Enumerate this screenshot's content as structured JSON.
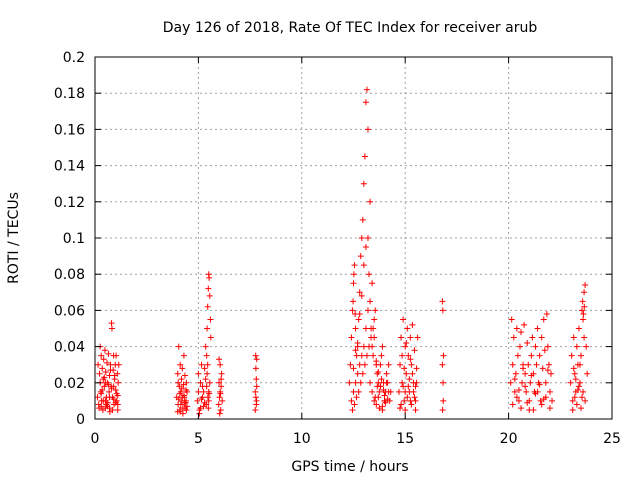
{
  "chart_data": {
    "type": "scatter",
    "title": "Day 126 of 2018, Rate Of TEC Index for receiver arub",
    "xlabel": "GPS time / hours",
    "ylabel": "ROTI / TECUs",
    "xlim": [
      0,
      25
    ],
    "ylim": [
      0,
      0.2
    ],
    "x_ticks": [
      0,
      5,
      10,
      15,
      20,
      25
    ],
    "x_tick_labels": [
      "0",
      "5",
      "10",
      "15",
      "20",
      "25"
    ],
    "y_ticks": [
      0,
      0.02,
      0.04,
      0.06,
      0.08,
      0.1,
      0.12,
      0.14,
      0.16,
      0.18,
      0.2
    ],
    "y_tick_labels": [
      "0",
      "0.02",
      "0.04",
      "0.06",
      "0.08",
      "0.1",
      "0.12",
      "0.14",
      "0.16",
      "0.18",
      "0.2"
    ],
    "grid": true,
    "marker": "+",
    "color": "#ff0000",
    "series": [
      {
        "x": [
          0.12,
          0.15,
          0.18,
          0.22,
          0.25,
          0.28,
          0.3,
          0.32,
          0.35,
          0.38,
          0.4,
          0.42,
          0.45,
          0.48,
          0.5,
          0.52,
          0.55,
          0.58,
          0.6,
          0.62,
          0.65,
          0.68,
          0.7,
          0.72,
          0.75,
          0.78,
          0.8,
          0.82,
          0.85,
          0.88,
          0.9,
          0.92,
          0.95,
          0.98,
          1.0,
          1.02,
          1.05,
          1.08,
          1.1,
          1.12,
          1.15,
          0.2,
          0.3,
          0.4,
          0.5,
          0.6,
          0.7,
          0.8,
          0.9,
          1.0,
          1.1,
          0.25,
          0.35,
          0.45,
          0.55,
          0.65,
          0.75,
          0.85,
          0.95,
          1.05,
          0.3,
          0.5,
          0.7,
          0.9,
          1.1
        ],
        "y": [
          0.012,
          0.03,
          0.008,
          0.025,
          0.04,
          0.015,
          0.035,
          0.01,
          0.028,
          0.005,
          0.022,
          0.033,
          0.018,
          0.038,
          0.006,
          0.026,
          0.012,
          0.031,
          0.02,
          0.009,
          0.036,
          0.015,
          0.024,
          0.004,
          0.03,
          0.018,
          0.053,
          0.05,
          0.012,
          0.027,
          0.035,
          0.008,
          0.022,
          0.03,
          0.016,
          0.035,
          0.01,
          0.025,
          0.005,
          0.02,
          0.03,
          0.006,
          0.014,
          0.01,
          0.02,
          0.007,
          0.012,
          0.017,
          0.011,
          0.009,
          0.013,
          0.02,
          0.016,
          0.023,
          0.008,
          0.019,
          0.027,
          0.005,
          0.024,
          0.014,
          0.007,
          0.01,
          0.006,
          0.018,
          0.008
        ]
      },
      {
        "x": [
          3.95,
          4.0,
          4.02,
          4.05,
          4.08,
          4.1,
          4.12,
          4.15,
          4.18,
          4.2,
          4.22,
          4.25,
          4.28,
          4.3,
          4.32,
          4.35,
          4.38,
          4.4,
          4.42,
          4.45,
          4.0,
          4.05,
          4.1,
          4.15,
          4.2,
          4.25,
          4.3,
          4.35,
          4.4,
          4.45,
          4.02,
          4.12,
          4.22,
          4.32,
          4.42
        ],
        "y": [
          0.012,
          0.025,
          0.008,
          0.04,
          0.018,
          0.005,
          0.03,
          0.015,
          0.022,
          0.01,
          0.028,
          0.006,
          0.019,
          0.035,
          0.012,
          0.024,
          0.009,
          0.016,
          0.02,
          0.007,
          0.004,
          0.011,
          0.014,
          0.008,
          0.017,
          0.003,
          0.013,
          0.006,
          0.01,
          0.015,
          0.02,
          0.004,
          0.012,
          0.009,
          0.005
        ]
      },
      {
        "x": [
          4.95,
          5.0,
          5.05,
          5.1,
          5.15,
          5.2,
          5.25,
          5.3,
          5.35,
          5.4,
          5.42,
          5.45,
          5.48,
          5.5,
          5.52,
          5.55,
          5.58,
          5.6,
          5.35,
          5.4,
          5.45,
          5.5,
          5.38,
          5.42,
          5.46,
          5.1,
          5.2,
          5.3,
          5.0,
          5.05,
          5.15,
          5.25,
          5.5,
          5.55,
          5.48,
          5.52
        ],
        "y": [
          0.01,
          0.025,
          0.005,
          0.02,
          0.03,
          0.012,
          0.015,
          0.028,
          0.04,
          0.035,
          0.05,
          0.062,
          0.072,
          0.08,
          0.078,
          0.068,
          0.055,
          0.045,
          0.022,
          0.018,
          0.03,
          0.015,
          0.008,
          0.025,
          0.012,
          0.006,
          0.018,
          0.009,
          0.015,
          0.003,
          0.011,
          0.007,
          0.01,
          0.02,
          0.006,
          0.014
        ]
      },
      {
        "x": [
          5.98,
          6.0,
          6.02,
          6.05,
          6.08,
          6.1,
          6.12,
          6.15,
          6.0,
          6.05,
          6.1,
          6.03,
          6.07
        ],
        "y": [
          0.008,
          0.02,
          0.012,
          0.03,
          0.005,
          0.018,
          0.025,
          0.01,
          0.033,
          0.015,
          0.022,
          0.003,
          0.014
        ]
      },
      {
        "x": [
          7.75,
          7.78,
          7.8,
          7.82,
          7.75,
          7.78,
          7.8,
          7.82,
          7.77,
          7.81
        ],
        "y": [
          0.005,
          0.012,
          0.022,
          0.033,
          0.015,
          0.028,
          0.008,
          0.018,
          0.035,
          0.01
        ]
      },
      {
        "x": [
          12.3,
          12.35,
          12.4,
          12.45,
          12.5,
          12.55,
          12.6,
          12.65,
          12.7,
          12.75,
          12.8,
          12.85,
          12.9,
          12.95,
          13.0,
          13.05,
          13.1,
          13.15,
          13.2,
          13.25,
          13.3,
          13.35,
          13.4,
          13.45,
          13.5,
          13.55,
          13.6,
          13.65,
          13.7,
          13.75,
          13.8,
          13.85,
          13.9,
          13.95,
          14.0,
          14.05,
          14.1,
          14.15,
          14.2,
          14.25,
          14.3,
          12.4,
          12.5,
          12.6,
          12.7,
          12.8,
          12.9,
          13.0,
          13.1,
          13.2,
          13.3,
          13.4,
          13.5,
          13.6,
          13.7,
          13.8,
          13.9,
          14.0,
          14.1,
          14.2,
          12.45,
          12.55,
          12.65,
          12.75,
          12.85,
          12.95,
          13.05,
          13.15,
          13.25,
          13.35,
          13.45,
          13.55,
          13.65,
          13.75,
          13.85,
          13.95,
          14.05,
          14.15,
          12.5,
          12.6,
          12.7,
          12.8,
          12.9,
          13.0,
          13.1,
          13.2,
          13.3,
          13.4,
          13.5,
          13.6,
          13.7,
          13.8,
          13.9,
          14.0,
          12.48,
          12.52,
          12.58
        ],
        "y": [
          0.02,
          0.03,
          0.045,
          0.06,
          0.075,
          0.085,
          0.05,
          0.035,
          0.04,
          0.055,
          0.07,
          0.09,
          0.1,
          0.11,
          0.13,
          0.145,
          0.175,
          0.182,
          0.1,
          0.08,
          0.065,
          0.05,
          0.04,
          0.035,
          0.045,
          0.06,
          0.03,
          0.025,
          0.02,
          0.015,
          0.03,
          0.035,
          0.04,
          0.02,
          0.01,
          0.015,
          0.025,
          0.02,
          0.03,
          0.01,
          0.015,
          0.01,
          0.015,
          0.02,
          0.025,
          0.03,
          0.035,
          0.04,
          0.05,
          0.06,
          0.02,
          0.015,
          0.01,
          0.008,
          0.012,
          0.018,
          0.005,
          0.01,
          0.02,
          0.015,
          0.005,
          0.008,
          0.012,
          0.015,
          0.02,
          0.025,
          0.03,
          0.035,
          0.04,
          0.045,
          0.05,
          0.012,
          0.018,
          0.006,
          0.022,
          0.016,
          0.009,
          0.011,
          0.028,
          0.038,
          0.042,
          0.058,
          0.068,
          0.085,
          0.095,
          0.16,
          0.12,
          0.075,
          0.055,
          0.032,
          0.026,
          0.018,
          0.007,
          0.013,
          0.065,
          0.08,
          0.058
        ]
      },
      {
        "x": [
          14.7,
          14.75,
          14.8,
          14.85,
          14.9,
          14.95,
          15.0,
          15.05,
          15.1,
          15.15,
          15.2,
          15.25,
          15.3,
          15.35,
          15.4,
          15.45,
          15.5,
          15.55,
          15.6,
          14.8,
          14.9,
          15.0,
          15.1,
          15.2,
          15.3,
          15.4,
          15.5,
          14.85,
          14.95,
          15.05,
          15.15,
          15.25,
          15.35,
          15.45,
          15.55,
          14.75,
          15.0,
          15.25,
          15.5
        ],
        "y": [
          0.015,
          0.03,
          0.045,
          0.02,
          0.055,
          0.01,
          0.04,
          0.025,
          0.05,
          0.035,
          0.015,
          0.045,
          0.03,
          0.052,
          0.02,
          0.038,
          0.01,
          0.028,
          0.045,
          0.008,
          0.018,
          0.005,
          0.012,
          0.022,
          0.008,
          0.015,
          0.005,
          0.035,
          0.028,
          0.042,
          0.018,
          0.033,
          0.025,
          0.012,
          0.02,
          0.006,
          0.015,
          0.01,
          0.018
        ]
      },
      {
        "x": [
          16.8,
          16.82,
          16.85,
          16.8,
          16.83,
          16.84,
          16.81
        ],
        "y": [
          0.065,
          0.06,
          0.035,
          0.03,
          0.02,
          0.01,
          0.005
        ]
      },
      {
        "x": [
          20.1,
          20.15,
          20.2,
          20.25,
          20.3,
          20.35,
          20.4,
          20.45,
          20.5,
          20.55,
          20.6,
          20.65,
          20.7,
          20.75,
          20.8,
          20.85,
          20.9,
          20.95,
          21.0,
          21.05,
          21.1,
          21.15,
          21.2,
          21.25,
          21.3,
          21.35,
          21.4,
          21.45,
          21.5,
          21.55,
          21.6,
          21.65,
          21.7,
          21.75,
          21.8,
          21.85,
          21.9,
          21.95,
          22.0,
          22.05,
          22.1,
          20.2,
          20.4,
          20.6,
          20.8,
          21.0,
          21.2,
          21.4,
          21.6,
          21.8,
          22.0,
          20.3,
          20.5,
          20.7,
          20.9,
          21.1,
          21.3,
          21.5,
          21.7,
          21.9
        ],
        "y": [
          0.02,
          0.055,
          0.03,
          0.045,
          0.015,
          0.025,
          0.05,
          0.035,
          0.01,
          0.04,
          0.048,
          0.02,
          0.03,
          0.052,
          0.025,
          0.015,
          0.042,
          0.03,
          0.005,
          0.02,
          0.035,
          0.045,
          0.025,
          0.015,
          0.04,
          0.03,
          0.05,
          0.02,
          0.035,
          0.01,
          0.045,
          0.028,
          0.055,
          0.038,
          0.02,
          0.058,
          0.04,
          0.03,
          0.015,
          0.025,
          0.01,
          0.008,
          0.012,
          0.006,
          0.018,
          0.01,
          0.005,
          0.015,
          0.008,
          0.012,
          0.006,
          0.022,
          0.016,
          0.028,
          0.009,
          0.024,
          0.014,
          0.019,
          0.011,
          0.027
        ]
      },
      {
        "x": [
          23.0,
          23.05,
          23.1,
          23.15,
          23.2,
          23.25,
          23.3,
          23.35,
          23.4,
          23.45,
          23.5,
          23.55,
          23.6,
          23.65,
          23.7,
          23.75,
          23.8,
          23.1,
          23.2,
          23.3,
          23.4,
          23.5,
          23.6,
          23.7,
          23.15,
          23.25,
          23.35,
          23.45,
          23.55,
          23.65,
          23.58,
          23.62,
          23.66
        ],
        "y": [
          0.02,
          0.035,
          0.01,
          0.045,
          0.025,
          0.015,
          0.04,
          0.03,
          0.05,
          0.02,
          0.035,
          0.06,
          0.055,
          0.07,
          0.074,
          0.04,
          0.025,
          0.005,
          0.012,
          0.008,
          0.018,
          0.006,
          0.015,
          0.01,
          0.028,
          0.022,
          0.016,
          0.03,
          0.012,
          0.045,
          0.065,
          0.058,
          0.062
        ]
      }
    ]
  }
}
